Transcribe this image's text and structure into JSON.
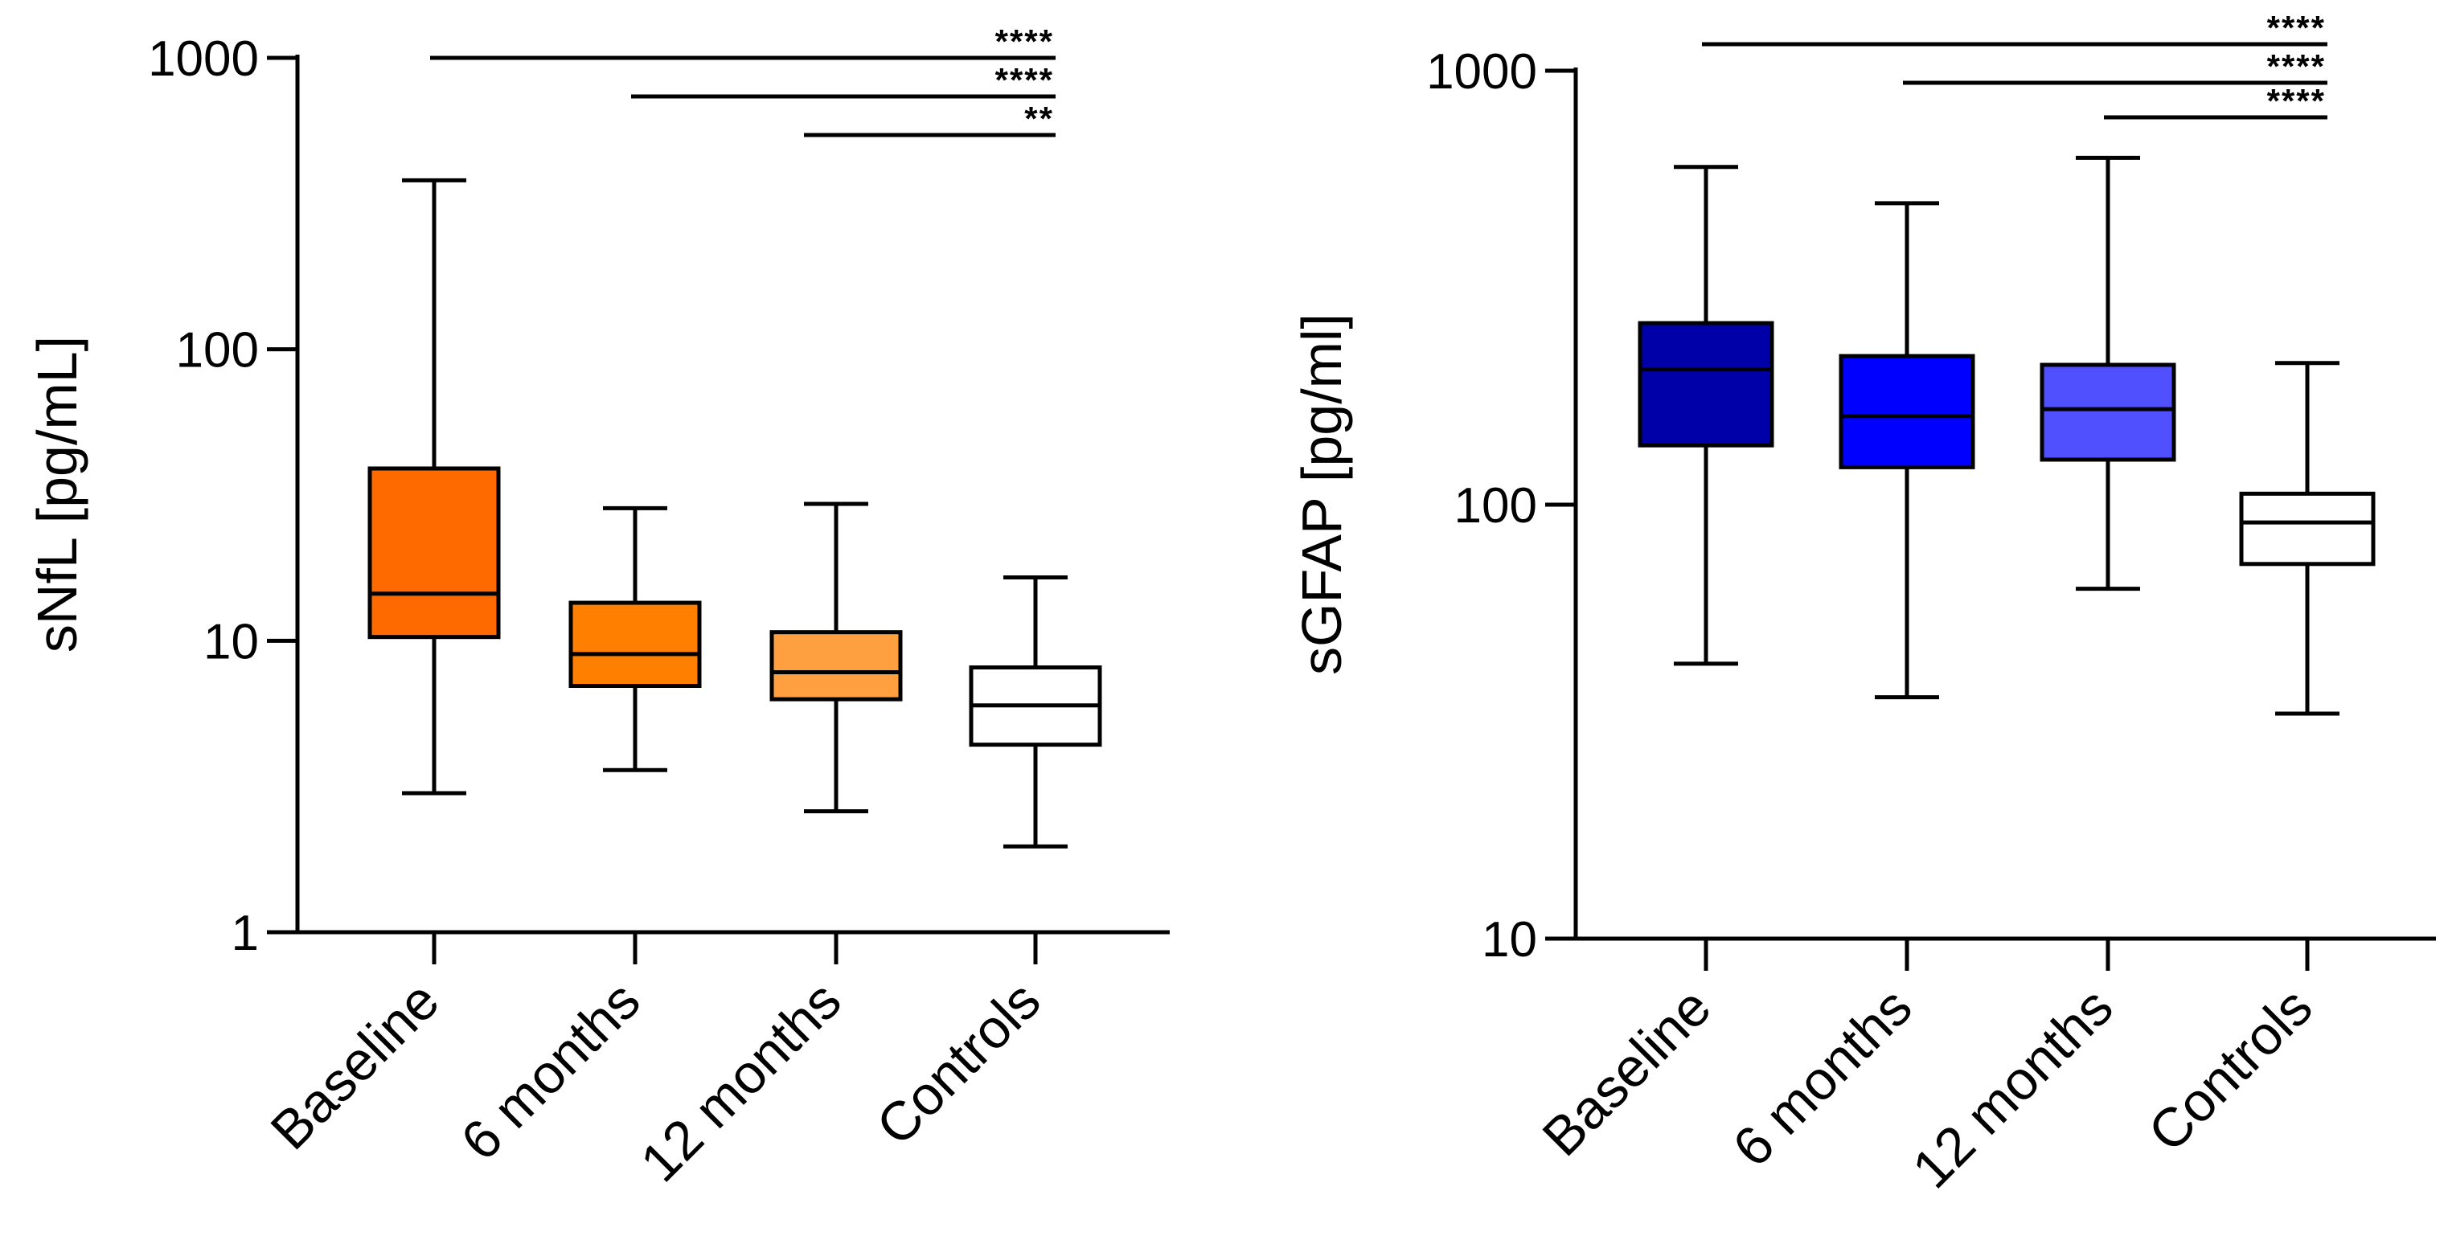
{
  "chart_data": [
    {
      "type": "box",
      "title": "",
      "xlabel": "",
      "ylabel": "sNfL [pg/mL]",
      "yscale": "log",
      "ylim": [
        1,
        1000
      ],
      "yticks": [
        1,
        10,
        100,
        1000
      ],
      "ytick_labels": [
        "1",
        "10",
        "100",
        "1000"
      ],
      "categories": [
        "Baseline",
        "6 months",
        "12 months",
        "Controls"
      ],
      "series": [
        {
          "name": "Baseline",
          "color": "#FF6A00",
          "min": 3.0,
          "q1": 10.3,
          "median": 14.5,
          "q3": 39,
          "max": 380
        },
        {
          "name": "6 months",
          "color": "#FF8000",
          "min": 3.6,
          "q1": 7.0,
          "median": 9.0,
          "q3": 13.5,
          "max": 28.5
        },
        {
          "name": "12 months",
          "color": "#FFA040",
          "min": 2.6,
          "q1": 6.3,
          "median": 7.8,
          "q3": 10.7,
          "max": 29.5
        },
        {
          "name": "Controls",
          "color": "#FFFFFF",
          "min": 1.97,
          "q1": 4.4,
          "median": 6.0,
          "q3": 8.1,
          "max": 16.5
        }
      ],
      "significance": [
        {
          "from": "Baseline",
          "to": "Controls",
          "label": "****"
        },
        {
          "from": "6 months",
          "to": "Controls",
          "label": "****"
        },
        {
          "from": "12 months",
          "to": "Controls",
          "label": "**"
        }
      ]
    },
    {
      "type": "box",
      "title": "",
      "xlabel": "",
      "ylabel": "sGFAP [pg/ml]",
      "yscale": "log",
      "ylim": [
        10,
        1000
      ],
      "yticks": [
        10,
        100,
        1000
      ],
      "ytick_labels": [
        "10",
        "100",
        "1000"
      ],
      "categories": [
        "Baseline",
        "6 months",
        "12 months",
        "Controls"
      ],
      "series": [
        {
          "name": "Baseline",
          "color": "#0000A8",
          "min": 43,
          "q1": 137,
          "median": 205,
          "q3": 262,
          "max": 600
        },
        {
          "name": "6 months",
          "color": "#0000FF",
          "min": 36,
          "q1": 122,
          "median": 160,
          "q3": 220,
          "max": 495
        },
        {
          "name": "12 months",
          "color": "#5050FF",
          "min": 64,
          "q1": 127,
          "median": 166,
          "q3": 210,
          "max": 630
        },
        {
          "name": "Controls",
          "color": "#FFFFFF",
          "min": 33,
          "q1": 73,
          "median": 91,
          "q3": 106,
          "max": 212
        }
      ],
      "significance": [
        {
          "from": "Baseline",
          "to": "Controls",
          "label": "****"
        },
        {
          "from": "6 months",
          "to": "Controls",
          "label": "****"
        },
        {
          "from": "12 months",
          "to": "Controls",
          "label": "****"
        }
      ]
    }
  ]
}
